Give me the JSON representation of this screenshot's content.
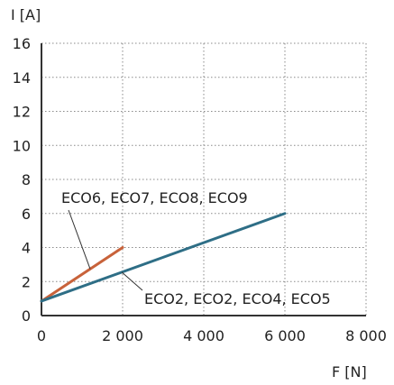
{
  "chart_data": {
    "type": "line",
    "xlabel": "F [N]",
    "ylabel": "I [A]",
    "xlim": [
      0,
      8000
    ],
    "ylim": [
      0,
      16
    ],
    "xticks": [
      0,
      2000,
      4000,
      6000,
      8000
    ],
    "xtick_labels": [
      "0",
      "2 000",
      "4 000",
      "6 000",
      "8 000"
    ],
    "yticks": [
      0,
      2,
      4,
      6,
      8,
      10,
      12,
      14,
      16
    ],
    "ytick_labels": [
      "0",
      "2",
      "4",
      "6",
      "8",
      "10",
      "12",
      "14",
      "16"
    ],
    "grid": true,
    "series": [
      {
        "label": "ECO6, ECO7, ECO8, ECO9",
        "color": "#c8623a",
        "x": [
          0,
          2000
        ],
        "y": [
          0.85,
          4.0
        ]
      },
      {
        "label": "ECO2, ECO2, ECO4, ECO5",
        "color": "#2e6e86",
        "x": [
          0,
          6000
        ],
        "y": [
          0.85,
          6.0
        ]
      }
    ]
  }
}
